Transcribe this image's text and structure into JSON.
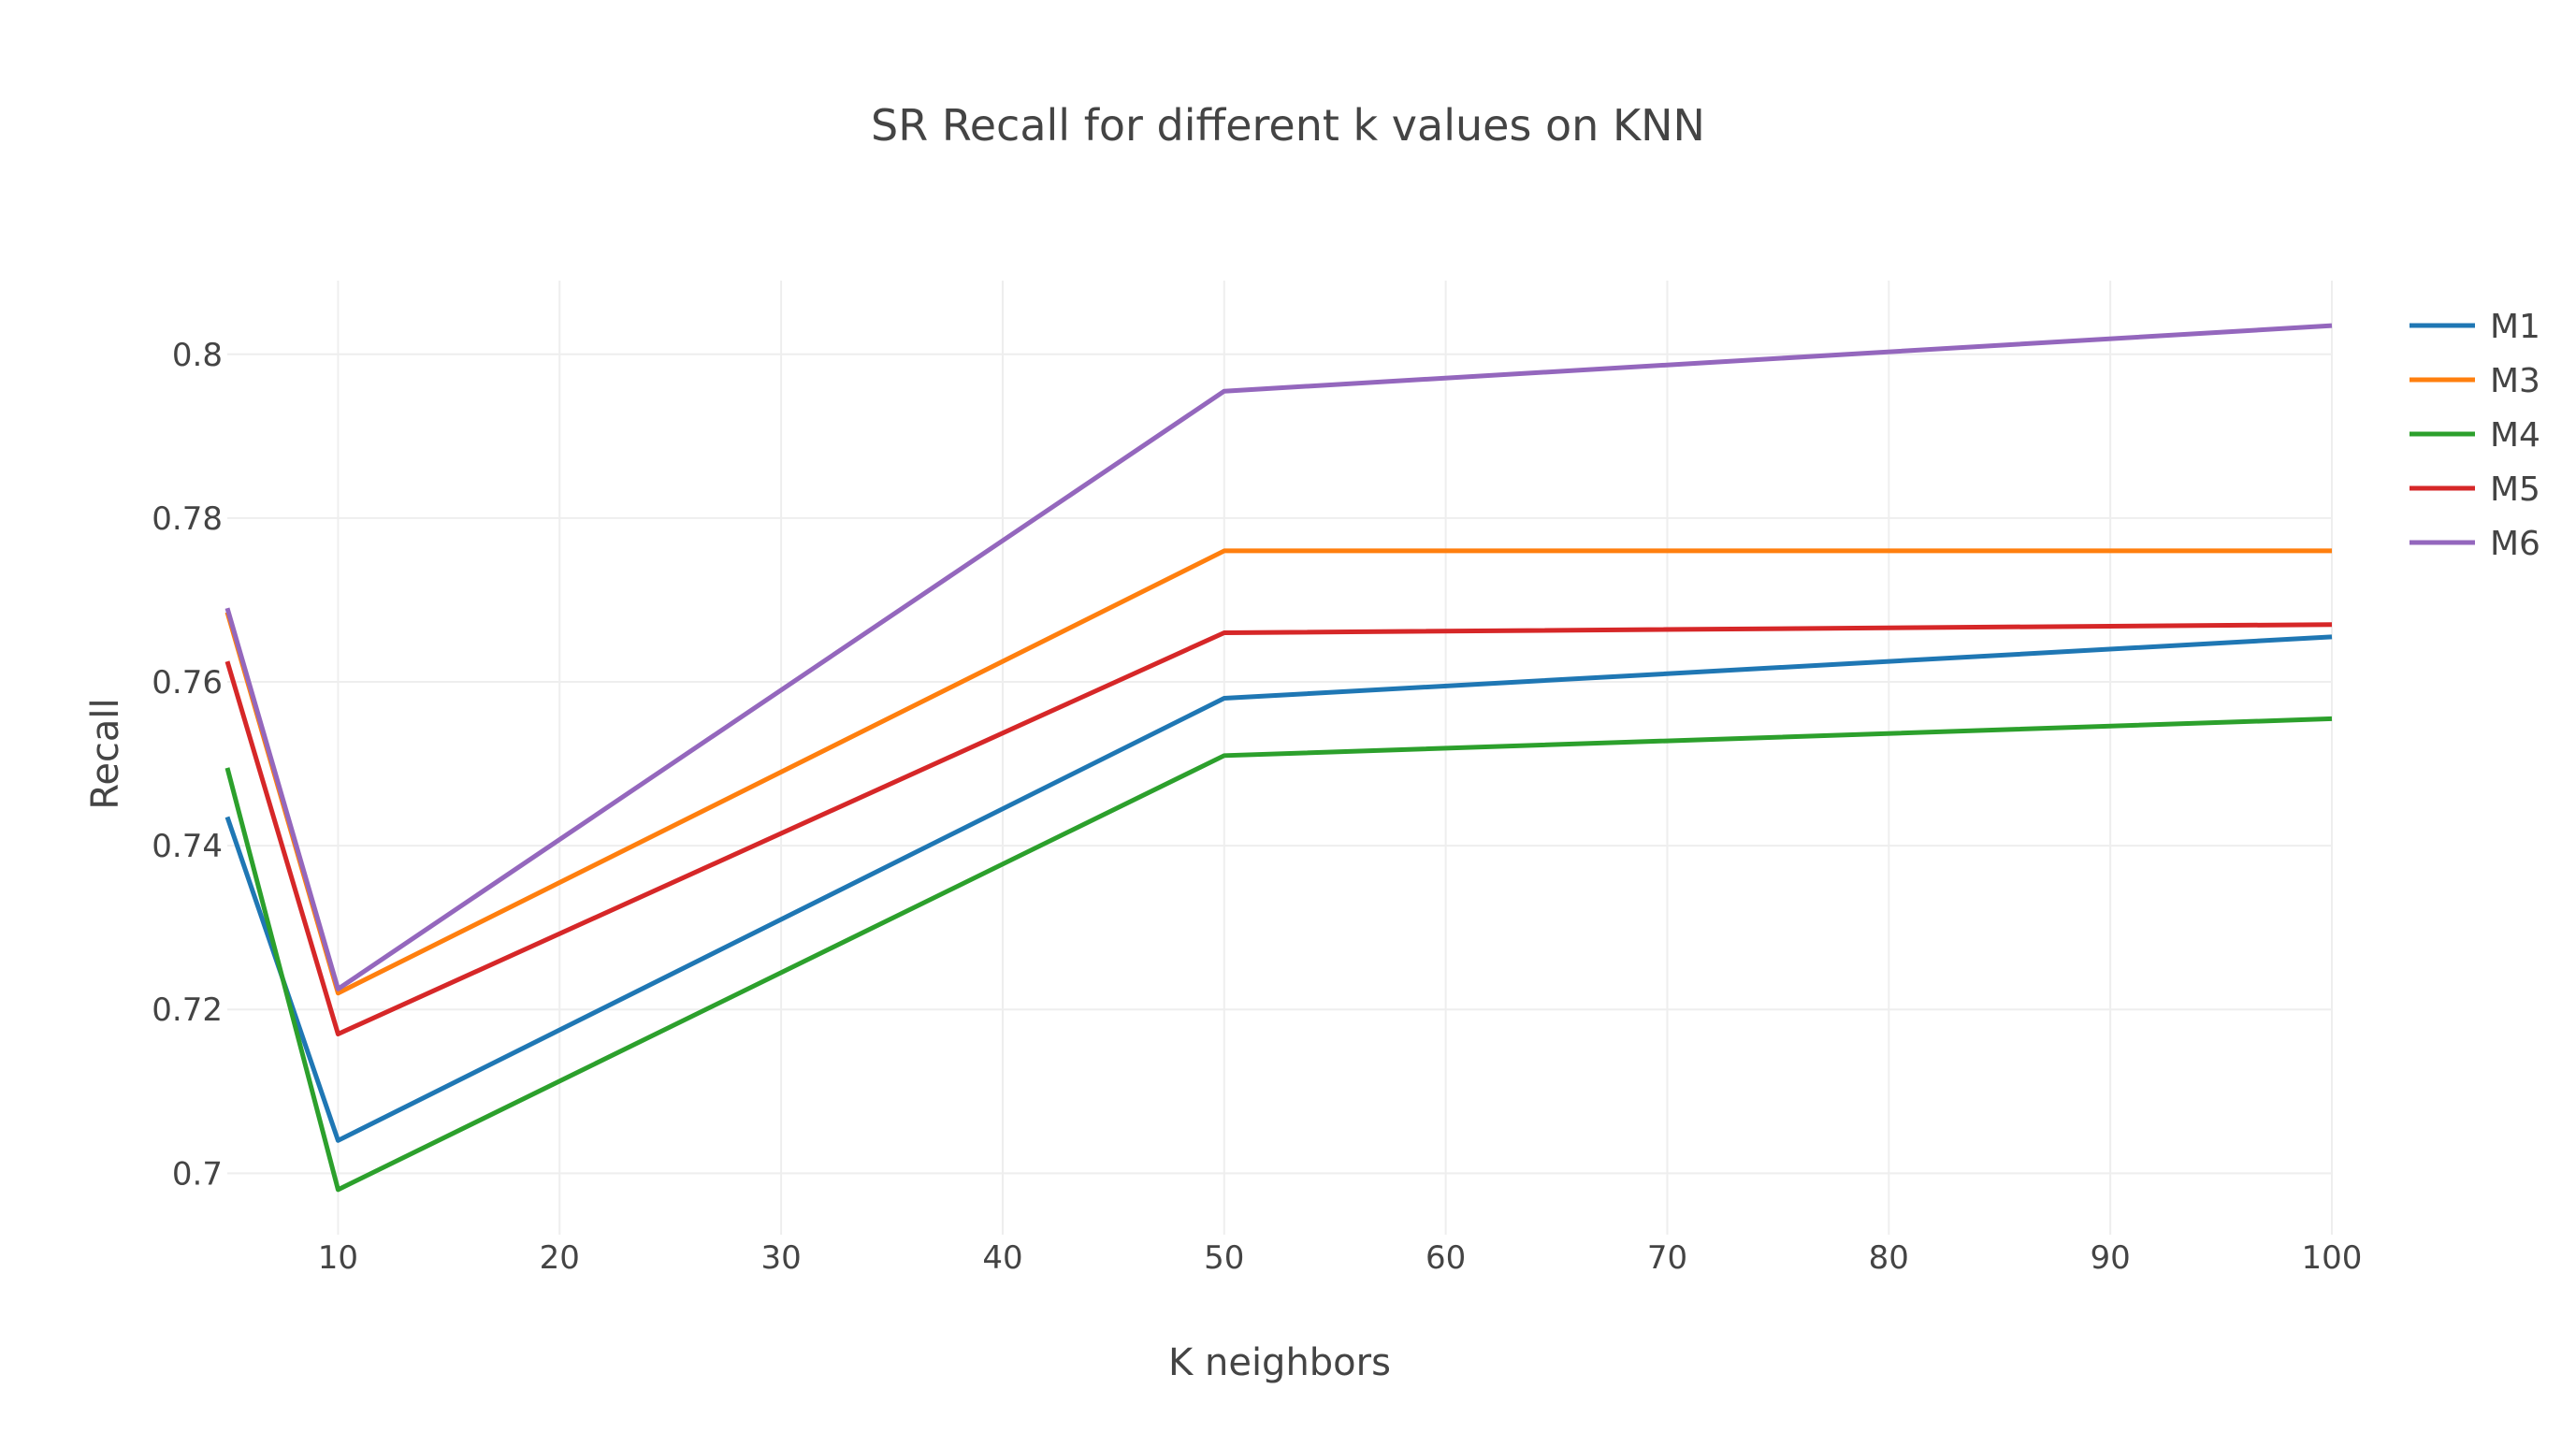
{
  "chart_data": {
    "type": "line",
    "title": "SR Recall for different k values on KNN",
    "xlabel": "K neighbors",
    "ylabel": "Recall",
    "x": [
      5,
      10,
      50,
      100
    ],
    "xlim": [
      5,
      100
    ],
    "ylim": [
      0.6925,
      0.809
    ],
    "x_ticks": [
      10,
      20,
      30,
      40,
      50,
      60,
      70,
      80,
      90,
      100
    ],
    "y_ticks": [
      0.7,
      0.72,
      0.74,
      0.76,
      0.78,
      0.8
    ],
    "y_tick_labels": [
      "0.7",
      "0.72",
      "0.74",
      "0.76",
      "0.78",
      "0.8"
    ],
    "grid": true,
    "legend_position": "top-right",
    "series": [
      {
        "name": "M1",
        "color": "#1f77b4",
        "values": [
          0.7435,
          0.704,
          0.758,
          0.7655
        ]
      },
      {
        "name": "M3",
        "color": "#ff7f0e",
        "values": [
          0.7685,
          0.722,
          0.776,
          0.776
        ]
      },
      {
        "name": "M4",
        "color": "#2ca02c",
        "values": [
          0.7495,
          0.698,
          0.751,
          0.7555
        ]
      },
      {
        "name": "M5",
        "color": "#d62728",
        "values": [
          0.7625,
          0.717,
          0.766,
          0.767
        ]
      },
      {
        "name": "M6",
        "color": "#9467bd",
        "values": [
          0.769,
          0.7225,
          0.7955,
          0.8035
        ]
      }
    ]
  }
}
